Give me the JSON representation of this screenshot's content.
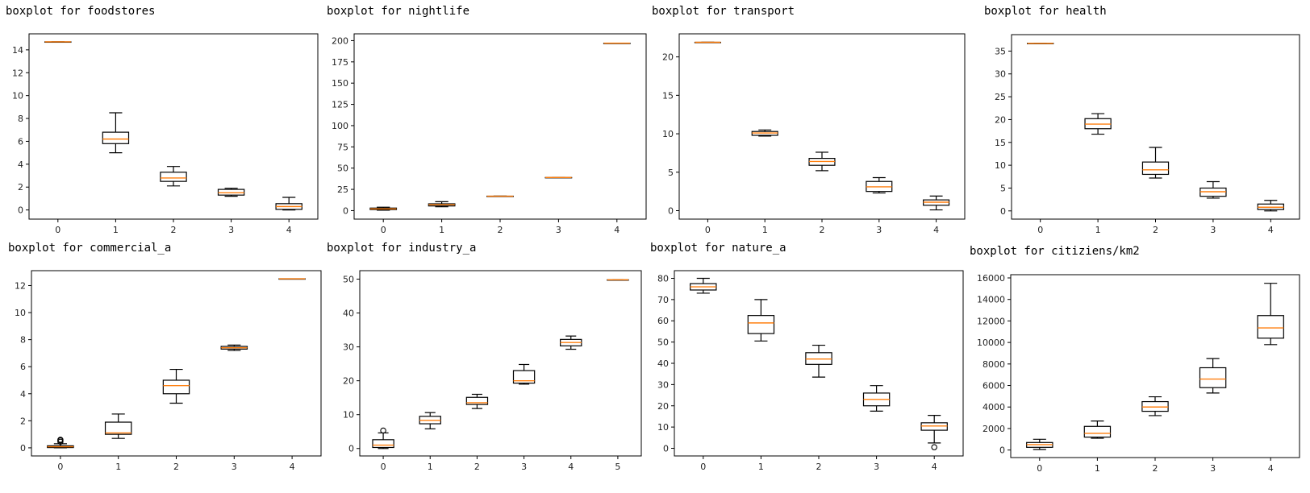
{
  "chart_data": [
    {
      "type": "boxplot",
      "title": "boxplot for foodstores",
      "xlabel": "",
      "ylabel": "",
      "categories": [
        "0",
        "1",
        "2",
        "3",
        "4"
      ],
      "yticks": [
        "0",
        "2",
        "4",
        "6",
        "8",
        "10",
        "12",
        "14"
      ],
      "ylim": [
        -0.8,
        15.4
      ],
      "boxes": [
        {
          "min": 14.7,
          "q1": 14.7,
          "median": 14.7,
          "q3": 14.7,
          "max": 14.7,
          "outliers": []
        },
        {
          "min": 5.0,
          "q1": 5.8,
          "median": 6.2,
          "q3": 6.8,
          "max": 8.5,
          "outliers": []
        },
        {
          "min": 2.1,
          "q1": 2.5,
          "median": 2.8,
          "q3": 3.3,
          "max": 3.8,
          "outliers": []
        },
        {
          "min": 1.2,
          "q1": 1.3,
          "median": 1.5,
          "q3": 1.8,
          "max": 1.9,
          "outliers": []
        },
        {
          "min": 0.0,
          "q1": 0.05,
          "median": 0.3,
          "q3": 0.55,
          "max": 1.1,
          "outliers": []
        }
      ],
      "grid": false
    },
    {
      "type": "boxplot",
      "title": "boxplot for nightlife",
      "xlabel": "",
      "ylabel": "",
      "categories": [
        "0",
        "1",
        "2",
        "3",
        "4"
      ],
      "yticks": [
        "0",
        "25",
        "50",
        "75",
        "100",
        "125",
        "150",
        "175",
        "200"
      ],
      "ylim": [
        -10,
        208
      ],
      "boxes": [
        {
          "min": 0.5,
          "q1": 1.2,
          "median": 2.0,
          "q3": 3.0,
          "max": 4.0,
          "outliers": []
        },
        {
          "min": 4.5,
          "q1": 5.5,
          "median": 7.0,
          "q3": 8.0,
          "max": 10.5,
          "outliers": []
        },
        {
          "min": 17,
          "q1": 17,
          "median": 17,
          "q3": 17,
          "max": 17,
          "outliers": []
        },
        {
          "min": 39,
          "q1": 39,
          "median": 39,
          "q3": 39,
          "max": 39,
          "outliers": []
        },
        {
          "min": 197,
          "q1": 197,
          "median": 197,
          "q3": 197,
          "max": 197,
          "outliers": []
        }
      ],
      "grid": false
    },
    {
      "type": "boxplot",
      "title": "boxplot for transport",
      "xlabel": "",
      "ylabel": "",
      "categories": [
        "0",
        "1",
        "2",
        "3",
        "4"
      ],
      "yticks": [
        "0",
        "5",
        "10",
        "15",
        "20"
      ],
      "ylim": [
        -1.1,
        23.0
      ],
      "boxes": [
        {
          "min": 21.9,
          "q1": 21.9,
          "median": 21.9,
          "q3": 21.9,
          "max": 21.9,
          "outliers": []
        },
        {
          "min": 9.7,
          "q1": 9.8,
          "median": 10.1,
          "q3": 10.3,
          "max": 10.5,
          "outliers": []
        },
        {
          "min": 5.2,
          "q1": 5.9,
          "median": 6.4,
          "q3": 6.8,
          "max": 7.6,
          "outliers": []
        },
        {
          "min": 2.3,
          "q1": 2.5,
          "median": 3.1,
          "q3": 3.8,
          "max": 4.3,
          "outliers": []
        },
        {
          "min": 0.1,
          "q1": 0.7,
          "median": 1.1,
          "q3": 1.4,
          "max": 1.9,
          "outliers": []
        }
      ],
      "grid": false
    },
    {
      "type": "boxplot",
      "title": "boxplot for health",
      "xlabel": "",
      "ylabel": "",
      "categories": [
        "0",
        "1",
        "2",
        "3",
        "4"
      ],
      "yticks": [
        "0",
        "5",
        "10",
        "15",
        "20",
        "25",
        "30",
        "35"
      ],
      "ylim": [
        -1.8,
        38.6
      ],
      "boxes": [
        {
          "min": 36.7,
          "q1": 36.7,
          "median": 36.7,
          "q3": 36.7,
          "max": 36.7,
          "outliers": []
        },
        {
          "min": 16.8,
          "q1": 18.0,
          "median": 19.0,
          "q3": 20.2,
          "max": 21.3,
          "outliers": []
        },
        {
          "min": 7.2,
          "q1": 8.0,
          "median": 9.0,
          "q3": 10.7,
          "max": 13.9,
          "outliers": []
        },
        {
          "min": 2.8,
          "q1": 3.2,
          "median": 4.2,
          "q3": 5.0,
          "max": 6.4,
          "outliers": []
        },
        {
          "min": 0.0,
          "q1": 0.3,
          "median": 0.8,
          "q3": 1.5,
          "max": 2.3,
          "outliers": []
        }
      ],
      "grid": false
    },
    {
      "type": "boxplot",
      "title": "boxplot for commercial_a",
      "xlabel": "",
      "ylabel": "",
      "categories": [
        "0",
        "1",
        "2",
        "3",
        "4"
      ],
      "yticks": [
        "0",
        "2",
        "4",
        "6",
        "8",
        "10",
        "12"
      ],
      "ylim": [
        -0.6,
        13.1
      ],
      "boxes": [
        {
          "min": 0.0,
          "q1": 0.02,
          "median": 0.08,
          "q3": 0.15,
          "max": 0.3,
          "outliers": [
            0.45,
            0.55,
            0.6
          ]
        },
        {
          "min": 0.7,
          "q1": 1.0,
          "median": 1.1,
          "q3": 1.9,
          "max": 2.5,
          "outliers": []
        },
        {
          "min": 3.3,
          "q1": 4.0,
          "median": 4.6,
          "q3": 5.0,
          "max": 5.8,
          "outliers": []
        },
        {
          "min": 7.2,
          "q1": 7.3,
          "median": 7.4,
          "q3": 7.5,
          "max": 7.6,
          "outliers": []
        },
        {
          "min": 12.5,
          "q1": 12.5,
          "median": 12.5,
          "q3": 12.5,
          "max": 12.5,
          "outliers": []
        }
      ],
      "grid": false
    },
    {
      "type": "boxplot",
      "title": "boxplot for industry_a",
      "xlabel": "",
      "ylabel": "",
      "categories": [
        "0",
        "1",
        "2",
        "3",
        "4",
        "5"
      ],
      "yticks": [
        "0",
        "10",
        "20",
        "30",
        "40",
        "50"
      ],
      "ylim": [
        -2.2,
        52.5
      ],
      "boxes": [
        {
          "min": 0.0,
          "q1": 0.3,
          "median": 1.0,
          "q3": 2.6,
          "max": 4.6,
          "outliers": [
            5.3
          ]
        },
        {
          "min": 5.8,
          "q1": 7.3,
          "median": 8.3,
          "q3": 9.5,
          "max": 10.6,
          "outliers": []
        },
        {
          "min": 11.8,
          "q1": 13.0,
          "median": 13.5,
          "q3": 15.1,
          "max": 16.0,
          "outliers": []
        },
        {
          "min": 19.0,
          "q1": 19.3,
          "median": 20.0,
          "q3": 23.0,
          "max": 24.8,
          "outliers": []
        },
        {
          "min": 29.3,
          "q1": 30.3,
          "median": 31.3,
          "q3": 32.2,
          "max": 33.2,
          "outliers": []
        },
        {
          "min": 49.8,
          "q1": 49.8,
          "median": 49.8,
          "q3": 49.8,
          "max": 49.8,
          "outliers": []
        }
      ],
      "grid": false
    },
    {
      "type": "boxplot",
      "title": "boxplot for nature_a",
      "xlabel": "",
      "ylabel": "",
      "categories": [
        "0",
        "1",
        "2",
        "3",
        "4"
      ],
      "yticks": [
        "0",
        "10",
        "20",
        "30",
        "40",
        "50",
        "60",
        "70",
        "80"
      ],
      "ylim": [
        -3.6,
        83.6
      ],
      "boxes": [
        {
          "min": 73.0,
          "q1": 74.5,
          "median": 76.0,
          "q3": 77.5,
          "max": 80.0,
          "outliers": []
        },
        {
          "min": 50.5,
          "q1": 54.0,
          "median": 59.0,
          "q3": 62.5,
          "max": 70.0,
          "outliers": []
        },
        {
          "min": 33.5,
          "q1": 39.5,
          "median": 42.0,
          "q3": 45.0,
          "max": 48.5,
          "outliers": []
        },
        {
          "min": 17.5,
          "q1": 20.0,
          "median": 23.0,
          "q3": 26.0,
          "max": 29.5,
          "outliers": []
        },
        {
          "min": 2.5,
          "q1": 8.5,
          "median": 10.5,
          "q3": 12.0,
          "max": 15.5,
          "outliers": [
            0.5
          ]
        }
      ],
      "grid": false
    },
    {
      "type": "boxplot",
      "title": "boxplot for citiziens/km2",
      "xlabel": "",
      "ylabel": "",
      "categories": [
        "0",
        "1",
        "2",
        "3",
        "4"
      ],
      "yticks": [
        "0",
        "2000",
        "4000",
        "6000",
        "8000",
        "10000",
        "12000",
        "14000",
        "16000"
      ],
      "ylim": [
        -700,
        16300
      ],
      "boxes": [
        {
          "min": 50,
          "q1": 250,
          "median": 500,
          "q3": 700,
          "max": 1000,
          "outliers": []
        },
        {
          "min": 1100,
          "q1": 1200,
          "median": 1550,
          "q3": 2200,
          "max": 2700,
          "outliers": []
        },
        {
          "min": 3200,
          "q1": 3600,
          "median": 4000,
          "q3": 4500,
          "max": 4950,
          "outliers": []
        },
        {
          "min": 5300,
          "q1": 5800,
          "median": 6600,
          "q3": 7650,
          "max": 8500,
          "outliers": []
        },
        {
          "min": 9800,
          "q1": 10400,
          "median": 11350,
          "q3": 12500,
          "max": 15500,
          "outliers": []
        }
      ],
      "grid": false
    }
  ],
  "colors": {
    "box": "#000000",
    "median": "#ff7f0e",
    "axes": "#000000"
  }
}
